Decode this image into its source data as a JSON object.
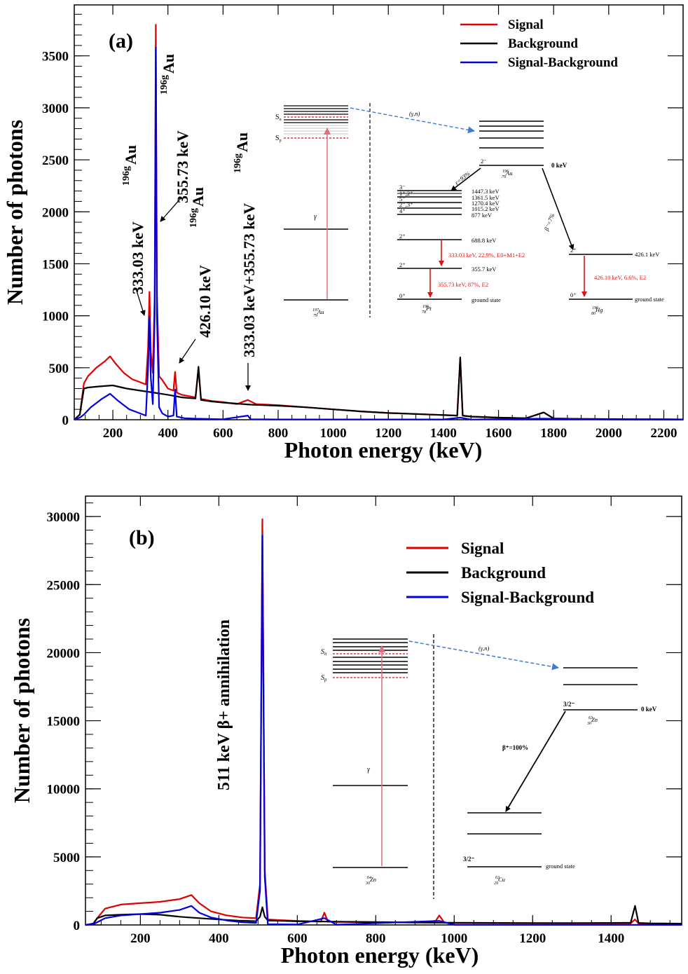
{
  "chart_data": [
    {
      "type": "line",
      "panel_label": "(a)",
      "xlabel": "Photon energy (keV)",
      "ylabel": "Number of photons",
      "xlim": [
        60,
        2270
      ],
      "ylim": [
        0,
        3990
      ],
      "xticks": [
        200,
        400,
        600,
        800,
        1000,
        1200,
        1400,
        1600,
        1800,
        2000,
        2200
      ],
      "xtick_labels": [
        "200",
        "400",
        "600",
        "800",
        "1000",
        "1200",
        "1400",
        "1600",
        "1800",
        "2000",
        "2200"
      ],
      "yticks": [
        0,
        500,
        1000,
        1500,
        2000,
        2500,
        3000,
        3500
      ],
      "ytick_labels": [
        "0",
        "500",
        "1000",
        "1500",
        "2000",
        "2500",
        "3000",
        "3500"
      ],
      "legend_position": "top-right",
      "series": [
        {
          "name": "Signal",
          "color": "#e00000",
          "x": [
            60,
            80,
            95,
            110,
            140,
            170,
            190,
            210,
            240,
            270,
            300,
            320,
            328,
            333,
            338,
            345,
            352,
            356,
            360,
            368,
            380,
            400,
            420,
            426,
            432,
            450,
            500,
            511,
            520,
            560,
            600,
            650,
            690,
            720,
            800,
            900,
            1000,
            1100,
            1200,
            1300,
            1400,
            1450,
            1461,
            1470,
            1500,
            1600,
            1700,
            1764,
            1800,
            1900,
            2000,
            2100,
            2200,
            2270
          ],
          "values": [
            0,
            50,
            350,
            420,
            500,
            560,
            610,
            540,
            450,
            390,
            360,
            340,
            700,
            1230,
            650,
            450,
            1200,
            3800,
            1200,
            420,
            380,
            300,
            280,
            460,
            260,
            240,
            215,
            480,
            200,
            180,
            170,
            150,
            190,
            150,
            140,
            120,
            100,
            80,
            65,
            55,
            45,
            40,
            590,
            40,
            30,
            20,
            15,
            70,
            12,
            8,
            6,
            5,
            4,
            3
          ]
        },
        {
          "name": "Background",
          "color": "#000000",
          "x": [
            60,
            80,
            95,
            110,
            150,
            200,
            250,
            300,
            350,
            400,
            450,
            500,
            511,
            520,
            560,
            600,
            700,
            800,
            900,
            1000,
            1100,
            1200,
            1300,
            1400,
            1450,
            1461,
            1470,
            1500,
            1600,
            1700,
            1764,
            1800,
            1900,
            2000,
            2100,
            2200,
            2270
          ],
          "values": [
            0,
            50,
            300,
            310,
            320,
            330,
            300,
            280,
            260,
            240,
            215,
            205,
            510,
            190,
            175,
            165,
            145,
            135,
            120,
            100,
            80,
            65,
            55,
            45,
            40,
            600,
            40,
            30,
            20,
            15,
            70,
            12,
            8,
            6,
            5,
            4,
            3
          ]
        },
        {
          "name": "Signal-Background",
          "color": "#0000e0",
          "x": [
            60,
            80,
            95,
            120,
            160,
            190,
            220,
            260,
            300,
            320,
            328,
            333,
            338,
            345,
            352,
            356,
            360,
            368,
            380,
            400,
            420,
            426,
            432,
            460,
            500,
            600,
            690,
            700,
            800,
            1000,
            1200,
            1400,
            1461,
            1500,
            1764,
            2000,
            2270
          ],
          "values": [
            0,
            20,
            50,
            120,
            200,
            250,
            180,
            100,
            60,
            40,
            500,
            990,
            400,
            150,
            1000,
            3580,
            1000,
            120,
            60,
            30,
            40,
            290,
            30,
            15,
            10,
            5,
            40,
            5,
            3,
            3,
            3,
            3,
            20,
            2,
            10,
            2,
            1
          ]
        }
      ]
    },
    {
      "type": "line",
      "panel_label": "(b)",
      "xlabel": "Photon energy (keV)",
      "ylabel": "Number of photons",
      "xlim": [
        60,
        1580
      ],
      "ylim": [
        0,
        31500
      ],
      "xticks": [
        200,
        400,
        600,
        800,
        1000,
        1200,
        1400
      ],
      "xtick_labels": [
        "200",
        "400",
        "600",
        "800",
        "1000",
        "1200",
        "1400"
      ],
      "yticks": [
        0,
        5000,
        10000,
        15000,
        20000,
        25000,
        30000
      ],
      "ytick_labels": [
        "0",
        "5000",
        "10000",
        "15000",
        "20000",
        "25000",
        "30000"
      ],
      "legend_position": "top-right",
      "series": [
        {
          "name": "Signal",
          "color": "#e00000",
          "x": [
            60,
            80,
            90,
            110,
            150,
            200,
            250,
            300,
            330,
            350,
            380,
            420,
            460,
            495,
            505,
            511,
            517,
            525,
            560,
            600,
            660,
            669,
            678,
            700,
            800,
            900,
            950,
            962,
            975,
            1000,
            1100,
            1200,
            1300,
            1400,
            1450,
            1461,
            1470,
            1500,
            1580
          ],
          "values": [
            0,
            100,
            500,
            1200,
            1500,
            1600,
            1700,
            1900,
            2200,
            1600,
            1000,
            700,
            550,
            500,
            3000,
            29800,
            4000,
            400,
            350,
            300,
            250,
            900,
            240,
            220,
            200,
            180,
            170,
            700,
            160,
            150,
            140,
            130,
            120,
            120,
            120,
            400,
            110,
            100,
            90
          ]
        },
        {
          "name": "Background",
          "color": "#000000",
          "x": [
            60,
            80,
            90,
            110,
            150,
            200,
            250,
            300,
            350,
            400,
            450,
            495,
            505,
            511,
            517,
            525,
            560,
            600,
            700,
            800,
            900,
            1000,
            1100,
            1200,
            1300,
            1400,
            1450,
            1461,
            1470,
            1500,
            1580
          ],
          "values": [
            0,
            100,
            500,
            700,
            750,
            800,
            750,
            600,
            500,
            400,
            320,
            280,
            600,
            1300,
            600,
            330,
            300,
            270,
            240,
            210,
            180,
            160,
            150,
            140,
            140,
            150,
            160,
            1400,
            150,
            120,
            100
          ]
        },
        {
          "name": "Signal-Background",
          "color": "#0000e0",
          "x": [
            60,
            80,
            90,
            110,
            150,
            200,
            250,
            300,
            330,
            350,
            380,
            420,
            460,
            495,
            505,
            511,
            517,
            525,
            600,
            669,
            700,
            962,
            1000,
            1461,
            1580
          ],
          "values": [
            0,
            50,
            200,
            500,
            700,
            800,
            900,
            1100,
            1400,
            900,
            550,
            330,
            200,
            150,
            2500,
            28600,
            3500,
            50,
            30,
            500,
            20,
            300,
            10,
            10,
            5
          ]
        }
      ]
    }
  ],
  "legend": {
    "a": [
      "Signal",
      "Background",
      "Signal-Background"
    ],
    "b": [
      "Signal",
      "Background",
      "Signal-Background"
    ]
  },
  "annotations_a": {
    "peak1": {
      "label": "333.03 keV",
      "nuclide_mass": "196g",
      "nuclide": "Au"
    },
    "peak2": {
      "label": "355.73 keV",
      "nuclide_mass": "196g",
      "nuclide": "Au"
    },
    "peak3": {
      "label": "426.10 keV",
      "nuclide_mass": "196g",
      "nuclide": "Au"
    },
    "peak4": {
      "label": "333.03 keV+355.73 keV",
      "nuclide_mass": "196g",
      "nuclide": "Au"
    }
  },
  "annotations_b": {
    "peak1": {
      "label": "511 keV β+ annihilation"
    }
  },
  "scheme_a": {
    "reaction": "(γ,n)",
    "sn": "S",
    "sn_sub": "n",
    "sp": "S",
    "sp_sub": "p",
    "gamma": "γ",
    "target": {
      "mass": "197",
      "z": "79",
      "sym": "Au"
    },
    "mid": {
      "mass": "196",
      "z": "79",
      "sym": "Au",
      "spin": "2⁻",
      "energy": "0 keV"
    },
    "left_branch": "ε=93%",
    "right_branch": "β⁻=7%",
    "pt": {
      "mass": "196",
      "z": "78",
      "sym": "Pt"
    },
    "hg": {
      "mass": "196",
      "z": "80",
      "sym": "Hg"
    },
    "pt_levels": [
      {
        "spin": "3⁻",
        "energy": "1447.3 keV"
      },
      {
        "spin": "1⁺,2⁺",
        "energy": "1361.5 keV"
      },
      {
        "spin": "5⁻",
        "energy": "1270.4 keV"
      },
      {
        "spin": "2⁻,3⁺",
        "energy": "1015.2 keV"
      },
      {
        "spin": "4⁺",
        "energy": "877 keV"
      },
      {
        "spin": "2⁺",
        "energy": "688.8 keV"
      },
      {
        "spin": "2⁺",
        "energy": "355.7 keV"
      },
      {
        "spin": "0⁺",
        "energy": "ground state"
      }
    ],
    "pt_trans1": "333.03 keV, 22.9%, E0+M1+E2",
    "pt_trans2": "355.73 keV, 87%, E2",
    "hg_level": {
      "spin": "2⁺",
      "energy": "426.1 keV"
    },
    "hg_ground": {
      "spin": "0⁺",
      "energy": "ground state"
    },
    "hg_trans": "426.10 keV, 6.6%, E2"
  },
  "scheme_b": {
    "reaction": "(γ,n)",
    "sn": "S",
    "sn_sub": "n",
    "sp": "S",
    "sp_sub": "p",
    "gamma": "γ",
    "target": {
      "mass": "64",
      "z": "30",
      "sym": "Zn"
    },
    "mid": {
      "mass": "63",
      "z": "30",
      "sym": "Zn",
      "spin": "3/2⁻",
      "energy": "0 keV"
    },
    "branch": "β⁺=100%",
    "cu": {
      "mass": "63",
      "z": "29",
      "sym": "Cu",
      "spin": "3/2⁻",
      "energy": "ground state"
    }
  }
}
